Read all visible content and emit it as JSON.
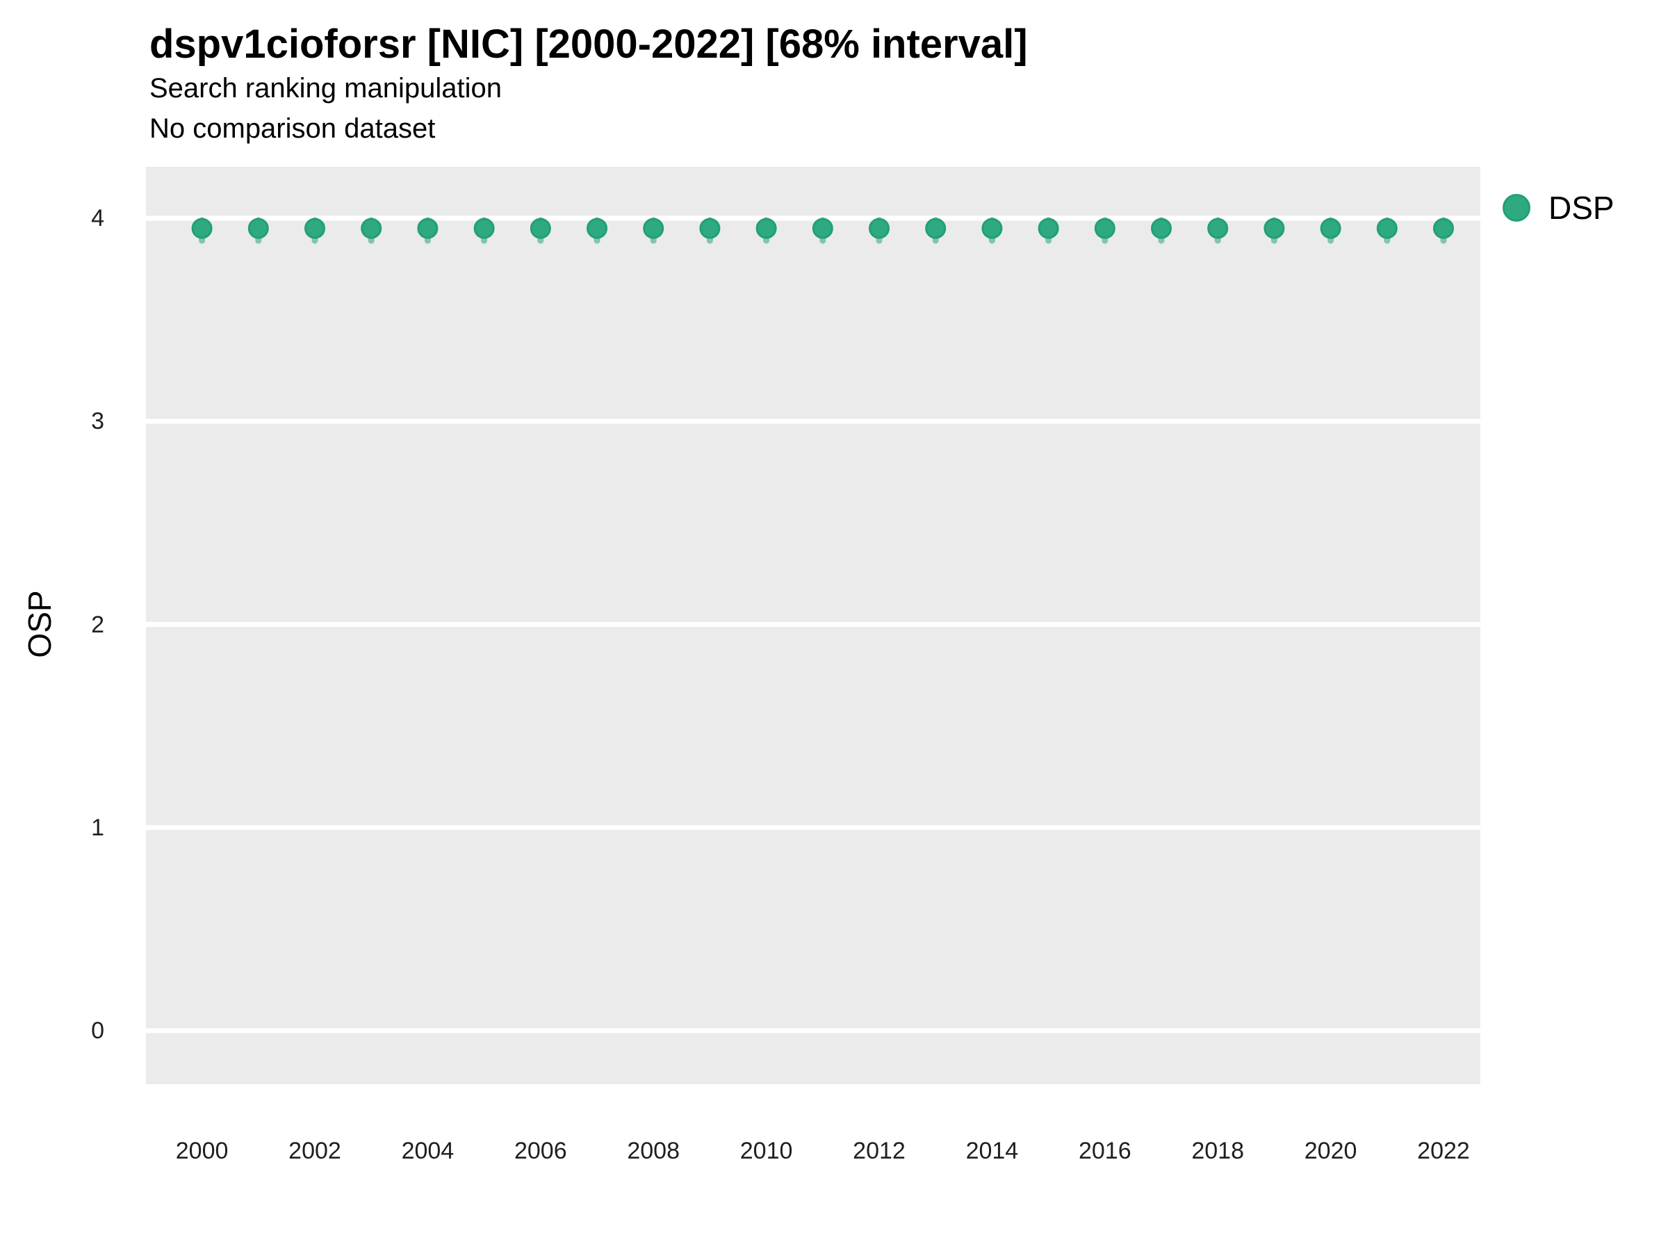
{
  "header": {
    "title": "dspv1cioforsr [NIC] [2000-2022] [68% interval]",
    "subtitle": "Search ranking manipulation",
    "caption": "No comparison dataset"
  },
  "legend": {
    "label": "DSP",
    "position": "right"
  },
  "colors": {
    "point_fill": "#2FA982",
    "point_stroke": "#20A075",
    "interval": "rgba(27,158,119,0.5)",
    "plot_background": "#EBEBEB",
    "gridline": "#FFFFFF",
    "tick_text": "#1f1f1f"
  },
  "chart_data": {
    "type": "scatter",
    "title": "dspv1cioforsr [NIC] [2000-2022] [68% interval]",
    "subtitle": "Search ranking manipulation",
    "caption": "No comparison dataset",
    "xlabel": "",
    "ylabel": "OSP",
    "legend_entries": [
      "DSP"
    ],
    "legend_position": "right",
    "grid": "horizontal-major-only",
    "x_ticks": [
      2000,
      2002,
      2004,
      2006,
      2008,
      2010,
      2012,
      2014,
      2016,
      2018,
      2020,
      2022
    ],
    "y_ticks": [
      0,
      1,
      2,
      3,
      4
    ],
    "xlim": [
      1999.0,
      2022.66
    ],
    "ylim": [
      -0.26,
      4.26
    ],
    "interval_level": "68%",
    "series": [
      {
        "name": "DSP",
        "x": [
          2000,
          2001,
          2002,
          2003,
          2004,
          2005,
          2006,
          2007,
          2008,
          2009,
          2010,
          2011,
          2012,
          2013,
          2014,
          2015,
          2016,
          2017,
          2018,
          2019,
          2020,
          2021,
          2022
        ],
        "y": [
          3.95,
          3.95,
          3.95,
          3.95,
          3.95,
          3.95,
          3.95,
          3.95,
          3.95,
          3.95,
          3.95,
          3.95,
          3.95,
          3.95,
          3.95,
          3.95,
          3.95,
          3.95,
          3.95,
          3.95,
          3.95,
          3.95,
          3.95
        ],
        "ci_low": [
          3.89,
          3.89,
          3.89,
          3.89,
          3.89,
          3.89,
          3.89,
          3.89,
          3.89,
          3.89,
          3.89,
          3.89,
          3.89,
          3.89,
          3.89,
          3.89,
          3.89,
          3.89,
          3.89,
          3.89,
          3.89,
          3.89,
          3.89
        ],
        "ci_high": [
          3.99,
          3.99,
          3.99,
          3.99,
          3.99,
          3.99,
          3.99,
          3.99,
          3.99,
          3.99,
          3.99,
          3.99,
          3.99,
          3.99,
          3.99,
          3.99,
          3.99,
          3.99,
          3.99,
          3.99,
          3.99,
          3.99,
          3.99
        ]
      }
    ]
  }
}
